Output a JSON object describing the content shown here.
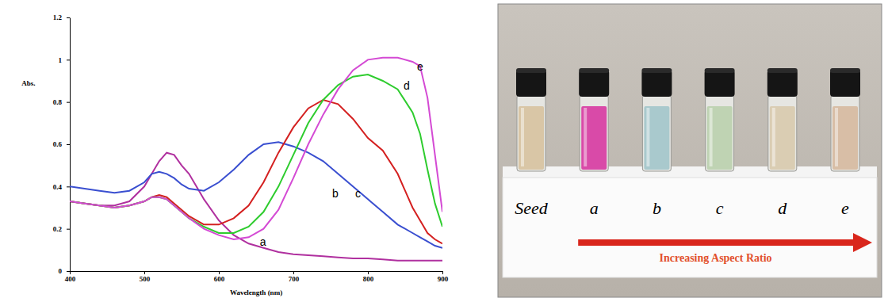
{
  "chart_data": {
    "type": "line",
    "x_label": "Wavelength (nm)",
    "y_label": "Abs.",
    "x": [
      400,
      420,
      440,
      460,
      480,
      500,
      510,
      520,
      530,
      540,
      550,
      560,
      580,
      600,
      620,
      640,
      660,
      680,
      700,
      720,
      740,
      760,
      780,
      800,
      820,
      840,
      860,
      870,
      880,
      890,
      900
    ],
    "series": [
      {
        "color": "#b0309f",
        "values": [
          0.33,
          0.32,
          0.31,
          0.31,
          0.33,
          0.4,
          0.46,
          0.52,
          0.56,
          0.55,
          0.5,
          0.46,
          0.34,
          0.24,
          0.17,
          0.13,
          0.11,
          0.09,
          0.08,
          0.075,
          0.07,
          0.065,
          0.06,
          0.06,
          0.055,
          0.05,
          0.05,
          0.05,
          0.05,
          0.05,
          0.05
        ]
      },
      {
        "color": "#3a4fd0",
        "values": [
          0.4,
          0.39,
          0.38,
          0.37,
          0.38,
          0.42,
          0.46,
          0.47,
          0.46,
          0.44,
          0.41,
          0.39,
          0.38,
          0.42,
          0.48,
          0.55,
          0.6,
          0.61,
          0.59,
          0.56,
          0.52,
          0.46,
          0.4,
          0.34,
          0.28,
          0.22,
          0.18,
          0.16,
          0.14,
          0.12,
          0.11
        ]
      },
      {
        "color": "#d42020",
        "values": [
          0.33,
          0.32,
          0.31,
          0.3,
          0.31,
          0.33,
          0.35,
          0.36,
          0.35,
          0.32,
          0.29,
          0.26,
          0.22,
          0.22,
          0.25,
          0.31,
          0.42,
          0.56,
          0.68,
          0.77,
          0.81,
          0.79,
          0.72,
          0.63,
          0.57,
          0.46,
          0.3,
          0.24,
          0.18,
          0.15,
          0.13
        ]
      },
      {
        "color": "#2ecc2e",
        "values": [
          0.33,
          0.32,
          0.31,
          0.3,
          0.31,
          0.33,
          0.35,
          0.35,
          0.34,
          0.31,
          0.28,
          0.25,
          0.21,
          0.18,
          0.18,
          0.21,
          0.28,
          0.4,
          0.55,
          0.7,
          0.81,
          0.88,
          0.92,
          0.93,
          0.9,
          0.86,
          0.75,
          0.65,
          0.48,
          0.32,
          0.21
        ]
      },
      {
        "color": "#d44ad4",
        "values": [
          0.33,
          0.32,
          0.31,
          0.3,
          0.31,
          0.33,
          0.35,
          0.35,
          0.34,
          0.31,
          0.28,
          0.25,
          0.2,
          0.17,
          0.15,
          0.16,
          0.2,
          0.29,
          0.44,
          0.6,
          0.74,
          0.86,
          0.95,
          1.0,
          1.01,
          1.01,
          0.99,
          0.97,
          0.82,
          0.55,
          0.28
        ]
      }
    ],
    "annotations": [
      {
        "text": "a",
        "x": 655,
        "y": 0.12
      },
      {
        "text": "b",
        "x": 752,
        "y": 0.35
      },
      {
        "text": "c",
        "x": 783,
        "y": 0.35
      },
      {
        "text": "d",
        "x": 848,
        "y": 0.86
      },
      {
        "text": "e",
        "x": 866,
        "y": 0.95
      }
    ],
    "xlim": [
      400,
      900
    ],
    "xticks": [
      400,
      500,
      600,
      700,
      800,
      900
    ],
    "ylim": [
      0,
      1.2
    ],
    "yticks": [
      0,
      0.2,
      0.4,
      0.6,
      0.8,
      1,
      1.2
    ],
    "grid": false
  },
  "photo": {
    "labels": [
      "Seed",
      "a",
      "b",
      "c",
      "d",
      "e"
    ],
    "colors": [
      "#d9c6a6",
      "#d94aa8",
      "#a9c9cd",
      "#bfd3b3",
      "#dacdb3",
      "#d8bea6"
    ],
    "arrow_label": "Increasing Aspect Ratio"
  }
}
